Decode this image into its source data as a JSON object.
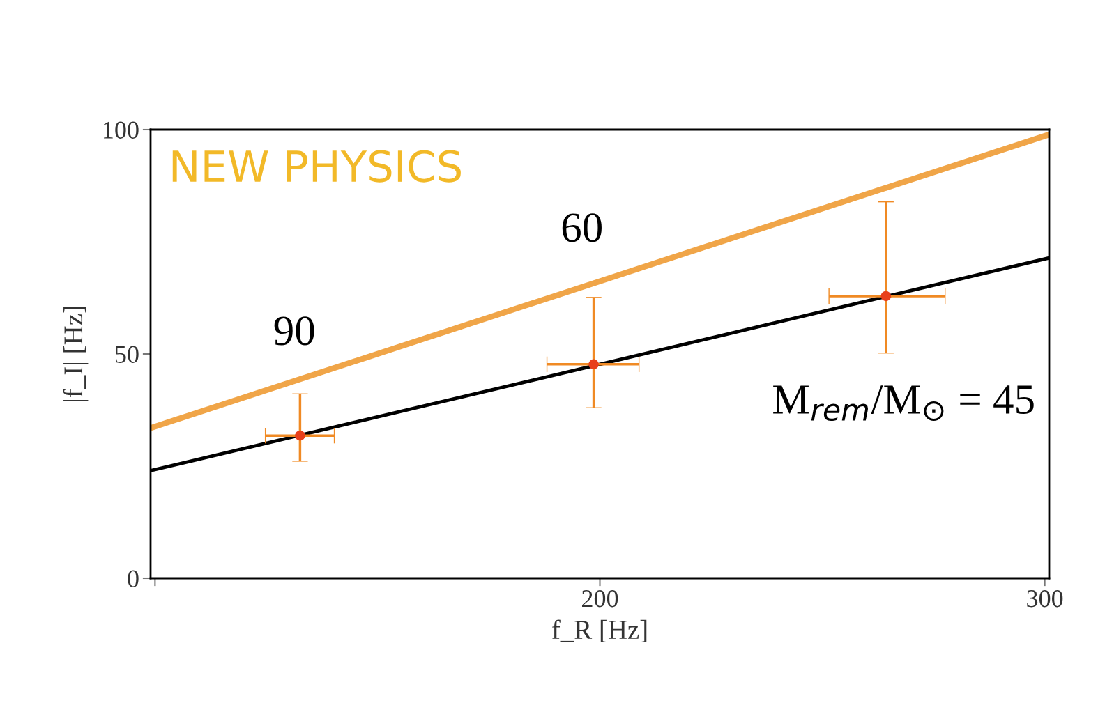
{
  "chart_data": {
    "type": "line",
    "xlabel": "f_R [Hz]",
    "ylabel": "|f_I| [Hz]",
    "xlim": [
      99,
      301
    ],
    "xticks": [
      {
        "value": 100,
        "label": null
      },
      200,
      300
    ],
    "ylim": [
      0,
      100
    ],
    "yticks": [
      0,
      50,
      100
    ],
    "grid": false,
    "legend": false,
    "series": [
      {
        "color": "#000000",
        "x": [
          99,
          301
        ],
        "values": [
          24,
          71.4
        ]
      },
      {
        "color": "#f0a548",
        "x": [
          99,
          301
        ],
        "values": [
          33.5,
          98.9
        ]
      },
      {
        "type": "scatter",
        "color": "#e8401c",
        "marker": "circle",
        "x": [
          132.6,
          198.6,
          264.3
        ],
        "values": [
          31.8,
          47.7,
          62.9
        ],
        "xerrors": [
          [
            124.8,
            140.3
          ],
          [
            188.1,
            208.8
          ],
          [
            251.5,
            277.6
          ]
        ],
        "errors": [
          [
            26.1,
            41.1
          ],
          [
            38.0,
            62.6
          ],
          [
            50.2,
            83.9
          ]
        ]
      }
    ],
    "annotations": [
      "90",
      "60",
      "M$_{rem}$/M$_{⊙}$ = 45",
      "NEW PHYSICS"
    ]
  }
}
